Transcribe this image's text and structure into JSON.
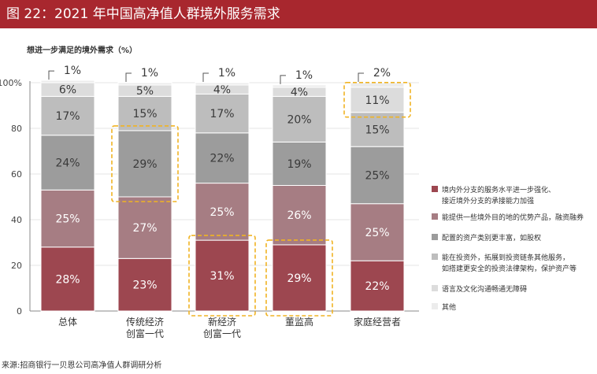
{
  "title": "图 22：2021 年中国高净值人群境外服务需求",
  "source": "来源:招商银行一贝恩公司高净值人群调研分析",
  "colors": {
    "title_bg": "#a8272e",
    "highlight": "#f0b323",
    "segments": [
      "#9d4750",
      "#a67d83",
      "#9c9c9c",
      "#bdbdbd",
      "#dcdcdc",
      "#ececec"
    ]
  },
  "chart_data": {
    "type": "bar",
    "stacked": true,
    "subtitle": "想进一步满足的境外需求（%）",
    "ylim": [
      0,
      100
    ],
    "yticks": [
      {
        "value": 0,
        "label": "0"
      },
      {
        "value": 20,
        "label": "20"
      },
      {
        "value": 40,
        "label": "40"
      },
      {
        "value": 60,
        "label": "60"
      },
      {
        "value": 80,
        "label": "80"
      },
      {
        "value": 100,
        "label": "100%"
      }
    ],
    "categories": [
      {
        "lines": [
          "总体"
        ]
      },
      {
        "lines": [
          "传统经济",
          "创富一代"
        ]
      },
      {
        "lines": [
          "新经济",
          "创富一代"
        ]
      },
      {
        "lines": [
          "董监高"
        ]
      },
      {
        "lines": [
          "家庭经营者"
        ]
      }
    ],
    "series": [
      {
        "name": "境内外分支的服务水平进一步强化、接近境外分支的承接能力加强",
        "legend_lines": [
          "境内外分支的服务水平进一步强化、",
          "接近境外分支的承接能力加强"
        ],
        "values": [
          28,
          23,
          31,
          29,
          22
        ],
        "labels": [
          "28%",
          "23%",
          "31%",
          "29%",
          "22%"
        ]
      },
      {
        "name": "能提供一些境外目的地的优势产品，融资融券",
        "legend_lines": [
          "能提供一些境外目的地的优势产品，融资融券"
        ],
        "values": [
          25,
          27,
          25,
          26,
          25
        ],
        "labels": [
          "25%",
          "27%",
          "25%",
          "26%",
          "25%"
        ]
      },
      {
        "name": "配置的资产类别更丰富，如股权",
        "legend_lines": [
          "配置的资产类别更丰富，如股权"
        ],
        "values": [
          24,
          29,
          22,
          19,
          25
        ],
        "labels": [
          "24%",
          "29%",
          "22%",
          "19%",
          "25%"
        ]
      },
      {
        "name": "能在投资外，拓展到投资链条其他服务，如搭建更安全的投资法律架构，保护资产等",
        "legend_lines": [
          "能在投资外，拓展到投资链条其他服务，",
          "如搭建更安全的投资法律架构，保护资产等"
        ],
        "values": [
          17,
          15,
          17,
          20,
          15
        ],
        "labels": [
          "17%",
          "15%",
          "17%",
          "20%",
          "15%"
        ]
      },
      {
        "name": "语言及文化沟通畅通无障碍",
        "legend_lines": [
          "语言及文化沟通畅通无障碍"
        ],
        "values": [
          6,
          5,
          4,
          4,
          11
        ],
        "labels": [
          "6%",
          "5%",
          "4%",
          "4%",
          "11%"
        ]
      },
      {
        "name": "其他",
        "legend_lines": [
          "其他"
        ],
        "values": [
          1,
          1,
          1,
          1,
          2
        ],
        "labels": [
          "1%",
          "1%",
          "1%",
          "1%",
          "2%"
        ]
      }
    ],
    "highlights": [
      {
        "category_index": 1,
        "series_index": 2
      },
      {
        "category_index": 2,
        "series_index": 0
      },
      {
        "category_index": 3,
        "series_index": 0
      },
      {
        "category_index": 4,
        "series_index": 4
      }
    ]
  }
}
